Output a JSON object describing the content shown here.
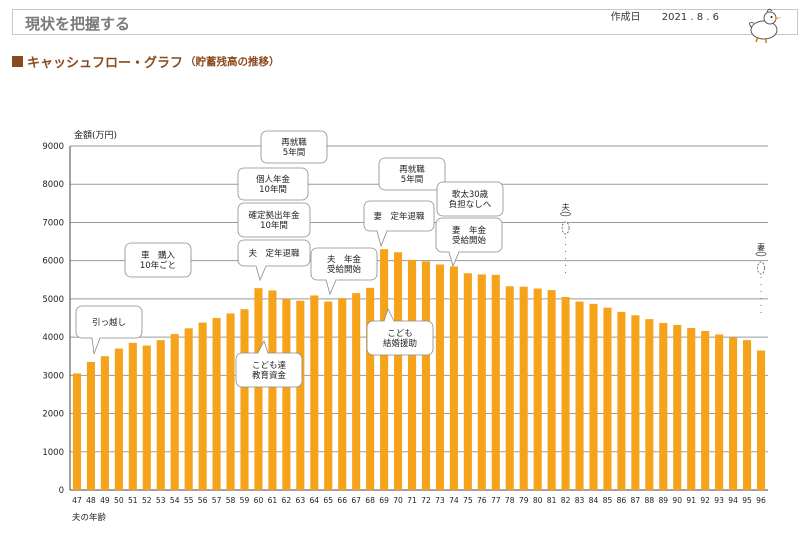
{
  "header": {
    "title": "現状を把握する",
    "created_label": "作成日",
    "created_date": "2021 . 8 . 6"
  },
  "section": {
    "title": "キャッシュフロー・グラフ",
    "subtitle": "（貯蓄残高の推移）"
  },
  "colors": {
    "bar": "#F5A31A",
    "accent": "#8A4A1C"
  },
  "chart_data": {
    "type": "bar",
    "ylabel": "金額(万円)",
    "xlabel": "夫の年齢",
    "ylim": [
      0,
      9000
    ],
    "yticks": [
      0,
      1000,
      2000,
      3000,
      4000,
      5000,
      6000,
      7000,
      8000,
      9000
    ],
    "grid": true,
    "categories": [
      47,
      48,
      49,
      50,
      51,
      52,
      53,
      54,
      55,
      56,
      57,
      58,
      59,
      60,
      61,
      62,
      63,
      64,
      65,
      66,
      67,
      68,
      69,
      70,
      71,
      72,
      73,
      74,
      75,
      76,
      77,
      78,
      79,
      80,
      81,
      82,
      83,
      84,
      85,
      86,
      87,
      88,
      89,
      90,
      91,
      92,
      93,
      94,
      95,
      96
    ],
    "values": [
      3050,
      3350,
      3500,
      3700,
      3850,
      3780,
      3920,
      4080,
      4230,
      4380,
      4500,
      4620,
      4730,
      5280,
      5220,
      5000,
      4950,
      5090,
      4930,
      5020,
      5150,
      5290,
      6300,
      6220,
      6020,
      5980,
      5900,
      5850,
      5670,
      5640,
      5630,
      5330,
      5320,
      5270,
      5230,
      5050,
      4930,
      4870,
      4770,
      4660,
      4570,
      4470,
      4370,
      4320,
      4240,
      4160,
      4070,
      3990,
      3920,
      3650
    ],
    "annotations": [
      {
        "lines": [
          "引っ越し"
        ]
      },
      {
        "lines": [
          "車　購入",
          "10年ごと"
        ]
      },
      {
        "lines": [
          "こども達",
          "教育資金"
        ]
      },
      {
        "lines": [
          "夫　定年退職"
        ]
      },
      {
        "lines": [
          "確定拠出年金",
          "10年間"
        ]
      },
      {
        "lines": [
          "個人年金",
          "10年間"
        ]
      },
      {
        "lines": [
          "再就職",
          "5年間"
        ]
      },
      {
        "lines": [
          "夫　年金",
          "受給開始"
        ]
      },
      {
        "lines": [
          "こども",
          "結婚援助"
        ]
      },
      {
        "lines": [
          "妻　定年退職"
        ]
      },
      {
        "lines": [
          "再就職",
          "5年間"
        ]
      },
      {
        "lines": [
          "妻　年金",
          "受給開始"
        ]
      },
      {
        "lines": [
          "歌太30歳",
          "負担なしへ"
        ]
      }
    ],
    "markers": [
      {
        "label": "夫"
      },
      {
        "label": "妻"
      }
    ]
  }
}
